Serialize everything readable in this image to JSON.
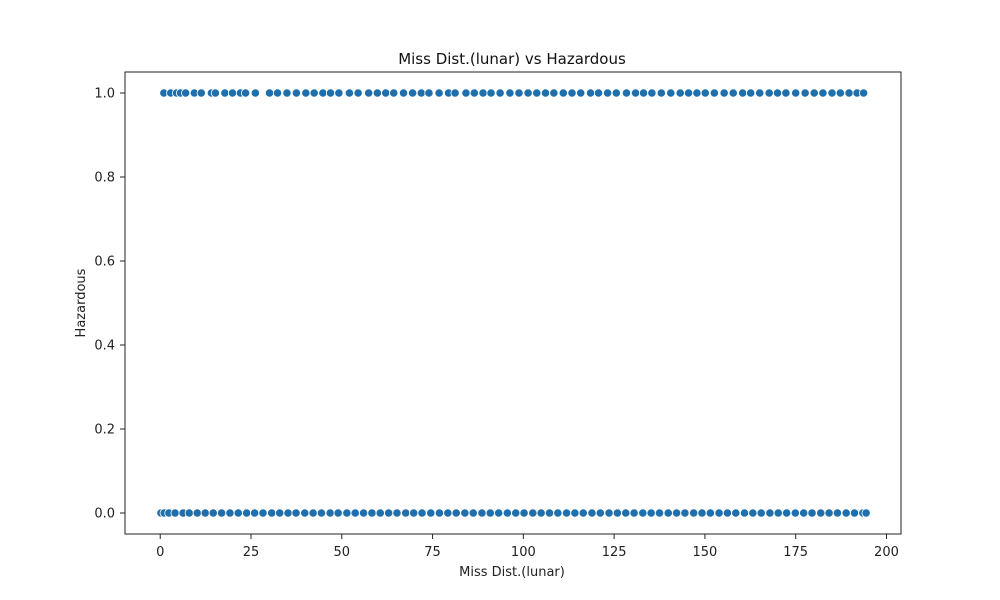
{
  "chart_data": {
    "type": "scatter",
    "title": "Miss Dist.(lunar) vs Hazardous",
    "xlabel": "Miss Dist.(lunar)",
    "ylabel": "Hazardous",
    "xlim": [
      -9.7,
      204.0
    ],
    "ylim": [
      -0.05,
      1.05
    ],
    "x_ticks": [
      0,
      25,
      50,
      75,
      100,
      125,
      150,
      175,
      200
    ],
    "y_ticks": [
      0.0,
      0.2,
      0.4,
      0.6,
      0.8,
      1.0
    ],
    "x_tick_labels": [
      "0",
      "25",
      "50",
      "75",
      "100",
      "125",
      "150",
      "175",
      "200"
    ],
    "y_tick_labels": [
      "0.0",
      "0.2",
      "0.4",
      "0.6",
      "0.8",
      "1.0"
    ],
    "grid": false,
    "series": [
      {
        "color": "#1f6fad",
        "points": [
          {
            "x": 1.0,
            "y": 1
          },
          {
            "x": 2.9,
            "y": 1
          },
          {
            "x": 4.5,
            "y": 1
          },
          {
            "x": 5.6,
            "y": 1
          },
          {
            "x": 7.0,
            "y": 1
          },
          {
            "x": 9.4,
            "y": 1
          },
          {
            "x": 11.3,
            "y": 1
          },
          {
            "x": 14.1,
            "y": 1
          },
          {
            "x": 15.2,
            "y": 1
          },
          {
            "x": 17.8,
            "y": 1
          },
          {
            "x": 19.9,
            "y": 1
          },
          {
            "x": 22.1,
            "y": 1
          },
          {
            "x": 23.5,
            "y": 1
          },
          {
            "x": 26.2,
            "y": 1
          },
          {
            "x": 30.1,
            "y": 1
          },
          {
            "x": 32.3,
            "y": 1
          },
          {
            "x": 34.9,
            "y": 1
          },
          {
            "x": 37.5,
            "y": 1
          },
          {
            "x": 40.1,
            "y": 1
          },
          {
            "x": 42.4,
            "y": 1
          },
          {
            "x": 44.8,
            "y": 1
          },
          {
            "x": 46.9,
            "y": 1
          },
          {
            "x": 49.2,
            "y": 1
          },
          {
            "x": 52.1,
            "y": 1
          },
          {
            "x": 54.5,
            "y": 1
          },
          {
            "x": 57.4,
            "y": 1
          },
          {
            "x": 59.8,
            "y": 1
          },
          {
            "x": 62.1,
            "y": 1
          },
          {
            "x": 64.3,
            "y": 1
          },
          {
            "x": 67.0,
            "y": 1
          },
          {
            "x": 69.5,
            "y": 1
          },
          {
            "x": 71.9,
            "y": 1
          },
          {
            "x": 74.0,
            "y": 1
          },
          {
            "x": 76.8,
            "y": 1
          },
          {
            "x": 79.4,
            "y": 1
          },
          {
            "x": 81.2,
            "y": 1
          },
          {
            "x": 84.2,
            "y": 1
          },
          {
            "x": 86.5,
            "y": 1
          },
          {
            "x": 88.9,
            "y": 1
          },
          {
            "x": 91.1,
            "y": 1
          },
          {
            "x": 93.6,
            "y": 1
          },
          {
            "x": 96.3,
            "y": 1
          },
          {
            "x": 98.8,
            "y": 1
          },
          {
            "x": 101.3,
            "y": 1
          },
          {
            "x": 103.7,
            "y": 1
          },
          {
            "x": 106.1,
            "y": 1
          },
          {
            "x": 108.4,
            "y": 1
          },
          {
            "x": 111.0,
            "y": 1
          },
          {
            "x": 113.4,
            "y": 1
          },
          {
            "x": 115.8,
            "y": 1
          },
          {
            "x": 118.5,
            "y": 1
          },
          {
            "x": 120.7,
            "y": 1
          },
          {
            "x": 123.2,
            "y": 1
          },
          {
            "x": 125.6,
            "y": 1
          },
          {
            "x": 128.4,
            "y": 1
          },
          {
            "x": 130.9,
            "y": 1
          },
          {
            "x": 133.1,
            "y": 1
          },
          {
            "x": 135.4,
            "y": 1
          },
          {
            "x": 138.0,
            "y": 1
          },
          {
            "x": 140.6,
            "y": 1
          },
          {
            "x": 143.2,
            "y": 1
          },
          {
            "x": 145.5,
            "y": 1
          },
          {
            "x": 147.8,
            "y": 1
          },
          {
            "x": 150.1,
            "y": 1
          },
          {
            "x": 152.6,
            "y": 1
          },
          {
            "x": 155.3,
            "y": 1
          },
          {
            "x": 157.8,
            "y": 1
          },
          {
            "x": 160.4,
            "y": 1
          },
          {
            "x": 162.6,
            "y": 1
          },
          {
            "x": 165.1,
            "y": 1
          },
          {
            "x": 167.7,
            "y": 1
          },
          {
            "x": 170.0,
            "y": 1
          },
          {
            "x": 172.3,
            "y": 1
          },
          {
            "x": 175.0,
            "y": 1
          },
          {
            "x": 177.6,
            "y": 1
          },
          {
            "x": 180.1,
            "y": 1
          },
          {
            "x": 182.5,
            "y": 1
          },
          {
            "x": 185.0,
            "y": 1
          },
          {
            "x": 187.3,
            "y": 1
          },
          {
            "x": 189.7,
            "y": 1
          },
          {
            "x": 191.9,
            "y": 1
          },
          {
            "x": 193.7,
            "y": 1
          },
          {
            "x": 0.2,
            "y": 0
          },
          {
            "x": 1.1,
            "y": 0
          },
          {
            "x": 2.4,
            "y": 0
          },
          {
            "x": 4.1,
            "y": 0
          },
          {
            "x": 6.3,
            "y": 0
          },
          {
            "x": 8.0,
            "y": 0
          },
          {
            "x": 10.2,
            "y": 0
          },
          {
            "x": 12.4,
            "y": 0
          },
          {
            "x": 14.6,
            "y": 0
          },
          {
            "x": 16.9,
            "y": 0
          },
          {
            "x": 19.2,
            "y": 0
          },
          {
            "x": 21.5,
            "y": 0
          },
          {
            "x": 23.8,
            "y": 0
          },
          {
            "x": 26.0,
            "y": 0
          },
          {
            "x": 28.3,
            "y": 0
          },
          {
            "x": 30.7,
            "y": 0
          },
          {
            "x": 32.9,
            "y": 0
          },
          {
            "x": 35.2,
            "y": 0
          },
          {
            "x": 37.4,
            "y": 0
          },
          {
            "x": 39.8,
            "y": 0
          },
          {
            "x": 42.1,
            "y": 0
          },
          {
            "x": 44.4,
            "y": 0
          },
          {
            "x": 46.8,
            "y": 0
          },
          {
            "x": 49.0,
            "y": 0
          },
          {
            "x": 51.4,
            "y": 0
          },
          {
            "x": 53.7,
            "y": 0
          },
          {
            "x": 56.0,
            "y": 0
          },
          {
            "x": 58.3,
            "y": 0
          },
          {
            "x": 60.6,
            "y": 0
          },
          {
            "x": 62.9,
            "y": 0
          },
          {
            "x": 65.2,
            "y": 0
          },
          {
            "x": 67.6,
            "y": 0
          },
          {
            "x": 69.8,
            "y": 0
          },
          {
            "x": 72.1,
            "y": 0
          },
          {
            "x": 74.5,
            "y": 0
          },
          {
            "x": 76.9,
            "y": 0
          },
          {
            "x": 79.2,
            "y": 0
          },
          {
            "x": 81.5,
            "y": 0
          },
          {
            "x": 83.9,
            "y": 0
          },
          {
            "x": 86.2,
            "y": 0
          },
          {
            "x": 88.6,
            "y": 0
          },
          {
            "x": 90.9,
            "y": 0
          },
          {
            "x": 93.2,
            "y": 0
          },
          {
            "x": 95.6,
            "y": 0
          },
          {
            "x": 97.9,
            "y": 0
          },
          {
            "x": 100.2,
            "y": 0
          },
          {
            "x": 102.6,
            "y": 0
          },
          {
            "x": 104.9,
            "y": 0
          },
          {
            "x": 107.2,
            "y": 0
          },
          {
            "x": 109.5,
            "y": 0
          },
          {
            "x": 111.9,
            "y": 0
          },
          {
            "x": 114.2,
            "y": 0
          },
          {
            "x": 116.5,
            "y": 0
          },
          {
            "x": 118.9,
            "y": 0
          },
          {
            "x": 121.2,
            "y": 0
          },
          {
            "x": 123.6,
            "y": 0
          },
          {
            "x": 125.9,
            "y": 0
          },
          {
            "x": 128.2,
            "y": 0
          },
          {
            "x": 130.5,
            "y": 0
          },
          {
            "x": 132.9,
            "y": 0
          },
          {
            "x": 135.2,
            "y": 0
          },
          {
            "x": 137.5,
            "y": 0
          },
          {
            "x": 139.9,
            "y": 0
          },
          {
            "x": 142.2,
            "y": 0
          },
          {
            "x": 144.5,
            "y": 0
          },
          {
            "x": 146.9,
            "y": 0
          },
          {
            "x": 149.2,
            "y": 0
          },
          {
            "x": 151.5,
            "y": 0
          },
          {
            "x": 153.9,
            "y": 0
          },
          {
            "x": 156.2,
            "y": 0
          },
          {
            "x": 158.5,
            "y": 0
          },
          {
            "x": 160.9,
            "y": 0
          },
          {
            "x": 163.2,
            "y": 0
          },
          {
            "x": 165.5,
            "y": 0
          },
          {
            "x": 167.9,
            "y": 0
          },
          {
            "x": 170.2,
            "y": 0
          },
          {
            "x": 172.5,
            "y": 0
          },
          {
            "x": 174.9,
            "y": 0
          },
          {
            "x": 177.2,
            "y": 0
          },
          {
            "x": 179.5,
            "y": 0
          },
          {
            "x": 181.9,
            "y": 0
          },
          {
            "x": 184.2,
            "y": 0
          },
          {
            "x": 186.5,
            "y": 0
          },
          {
            "x": 188.9,
            "y": 0
          },
          {
            "x": 191.2,
            "y": 0
          },
          {
            "x": 193.5,
            "y": 0
          },
          {
            "x": 194.4,
            "y": 0
          }
        ]
      }
    ]
  }
}
